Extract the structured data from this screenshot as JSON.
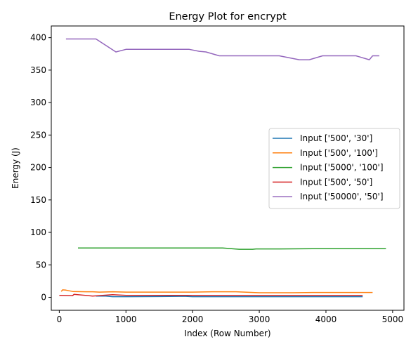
{
  "chart_data": {
    "type": "line",
    "title": "Energy Plot for encrypt",
    "xlabel": "Index (Row Number)",
    "ylabel": "Energy (J)",
    "xlim": [
      -120,
      5170
    ],
    "ylim": [
      -20,
      418
    ],
    "xticks": [
      0,
      1000,
      2000,
      3000,
      4000,
      5000
    ],
    "yticks": [
      0,
      50,
      100,
      150,
      200,
      250,
      300,
      350,
      400
    ],
    "legend_position": "center-right",
    "grid": false,
    "series": [
      {
        "name": "Input ['500', '30']",
        "color": "#1f77b4",
        "x": [
          550,
          700,
          800,
          1000,
          1500,
          1900,
          2000,
          2500,
          3000,
          3500,
          4000,
          4550
        ],
        "y": [
          2,
          1.8,
          1,
          1,
          1.2,
          1.5,
          1,
          1,
          1,
          1,
          1,
          1
        ]
      },
      {
        "name": "Input ['500', '100']",
        "color": "#ff7f0e",
        "x": [
          30,
          50,
          100,
          200,
          400,
          500,
          600,
          800,
          1000,
          1500,
          2000,
          2300,
          2650,
          3000,
          3500,
          3800,
          4200,
          4700
        ],
        "y": [
          9,
          11.5,
          11,
          9,
          8.5,
          8.5,
          8,
          8.5,
          8,
          8,
          8,
          8.5,
          8.5,
          7,
          7,
          7.5,
          7.5,
          7.5
        ]
      },
      {
        "name": "Input ['5000', '100']",
        "color": "#2ca02c",
        "x": [
          280,
          1000,
          2000,
          2450,
          2700,
          2900,
          2950,
          3300,
          3800,
          4500,
          4900
        ],
        "y": [
          76,
          76,
          76,
          76,
          74,
          74,
          74.5,
          74.5,
          75,
          75,
          75
        ]
      },
      {
        "name": "Input ['500', '50']",
        "color": "#d62728",
        "x": [
          0,
          200,
          220,
          500,
          800,
          1000,
          1100,
          1500,
          2000,
          2500,
          3000,
          3500,
          4000,
          4550
        ],
        "y": [
          3,
          2.5,
          4.5,
          2,
          4,
          3,
          3,
          3,
          3,
          3,
          3,
          3,
          3,
          3
        ]
      },
      {
        "name": "Input ['50000', '50']",
        "color": "#9467bd",
        "x": [
          100,
          550,
          850,
          1000,
          1950,
          2100,
          2200,
          2400,
          3300,
          3600,
          3750,
          3950,
          4450,
          4650,
          4700,
          4800
        ],
        "y": [
          398,
          398,
          378,
          382,
          382,
          379,
          378,
          372,
          372,
          366,
          366,
          372,
          372,
          366,
          372,
          372
        ]
      }
    ]
  }
}
